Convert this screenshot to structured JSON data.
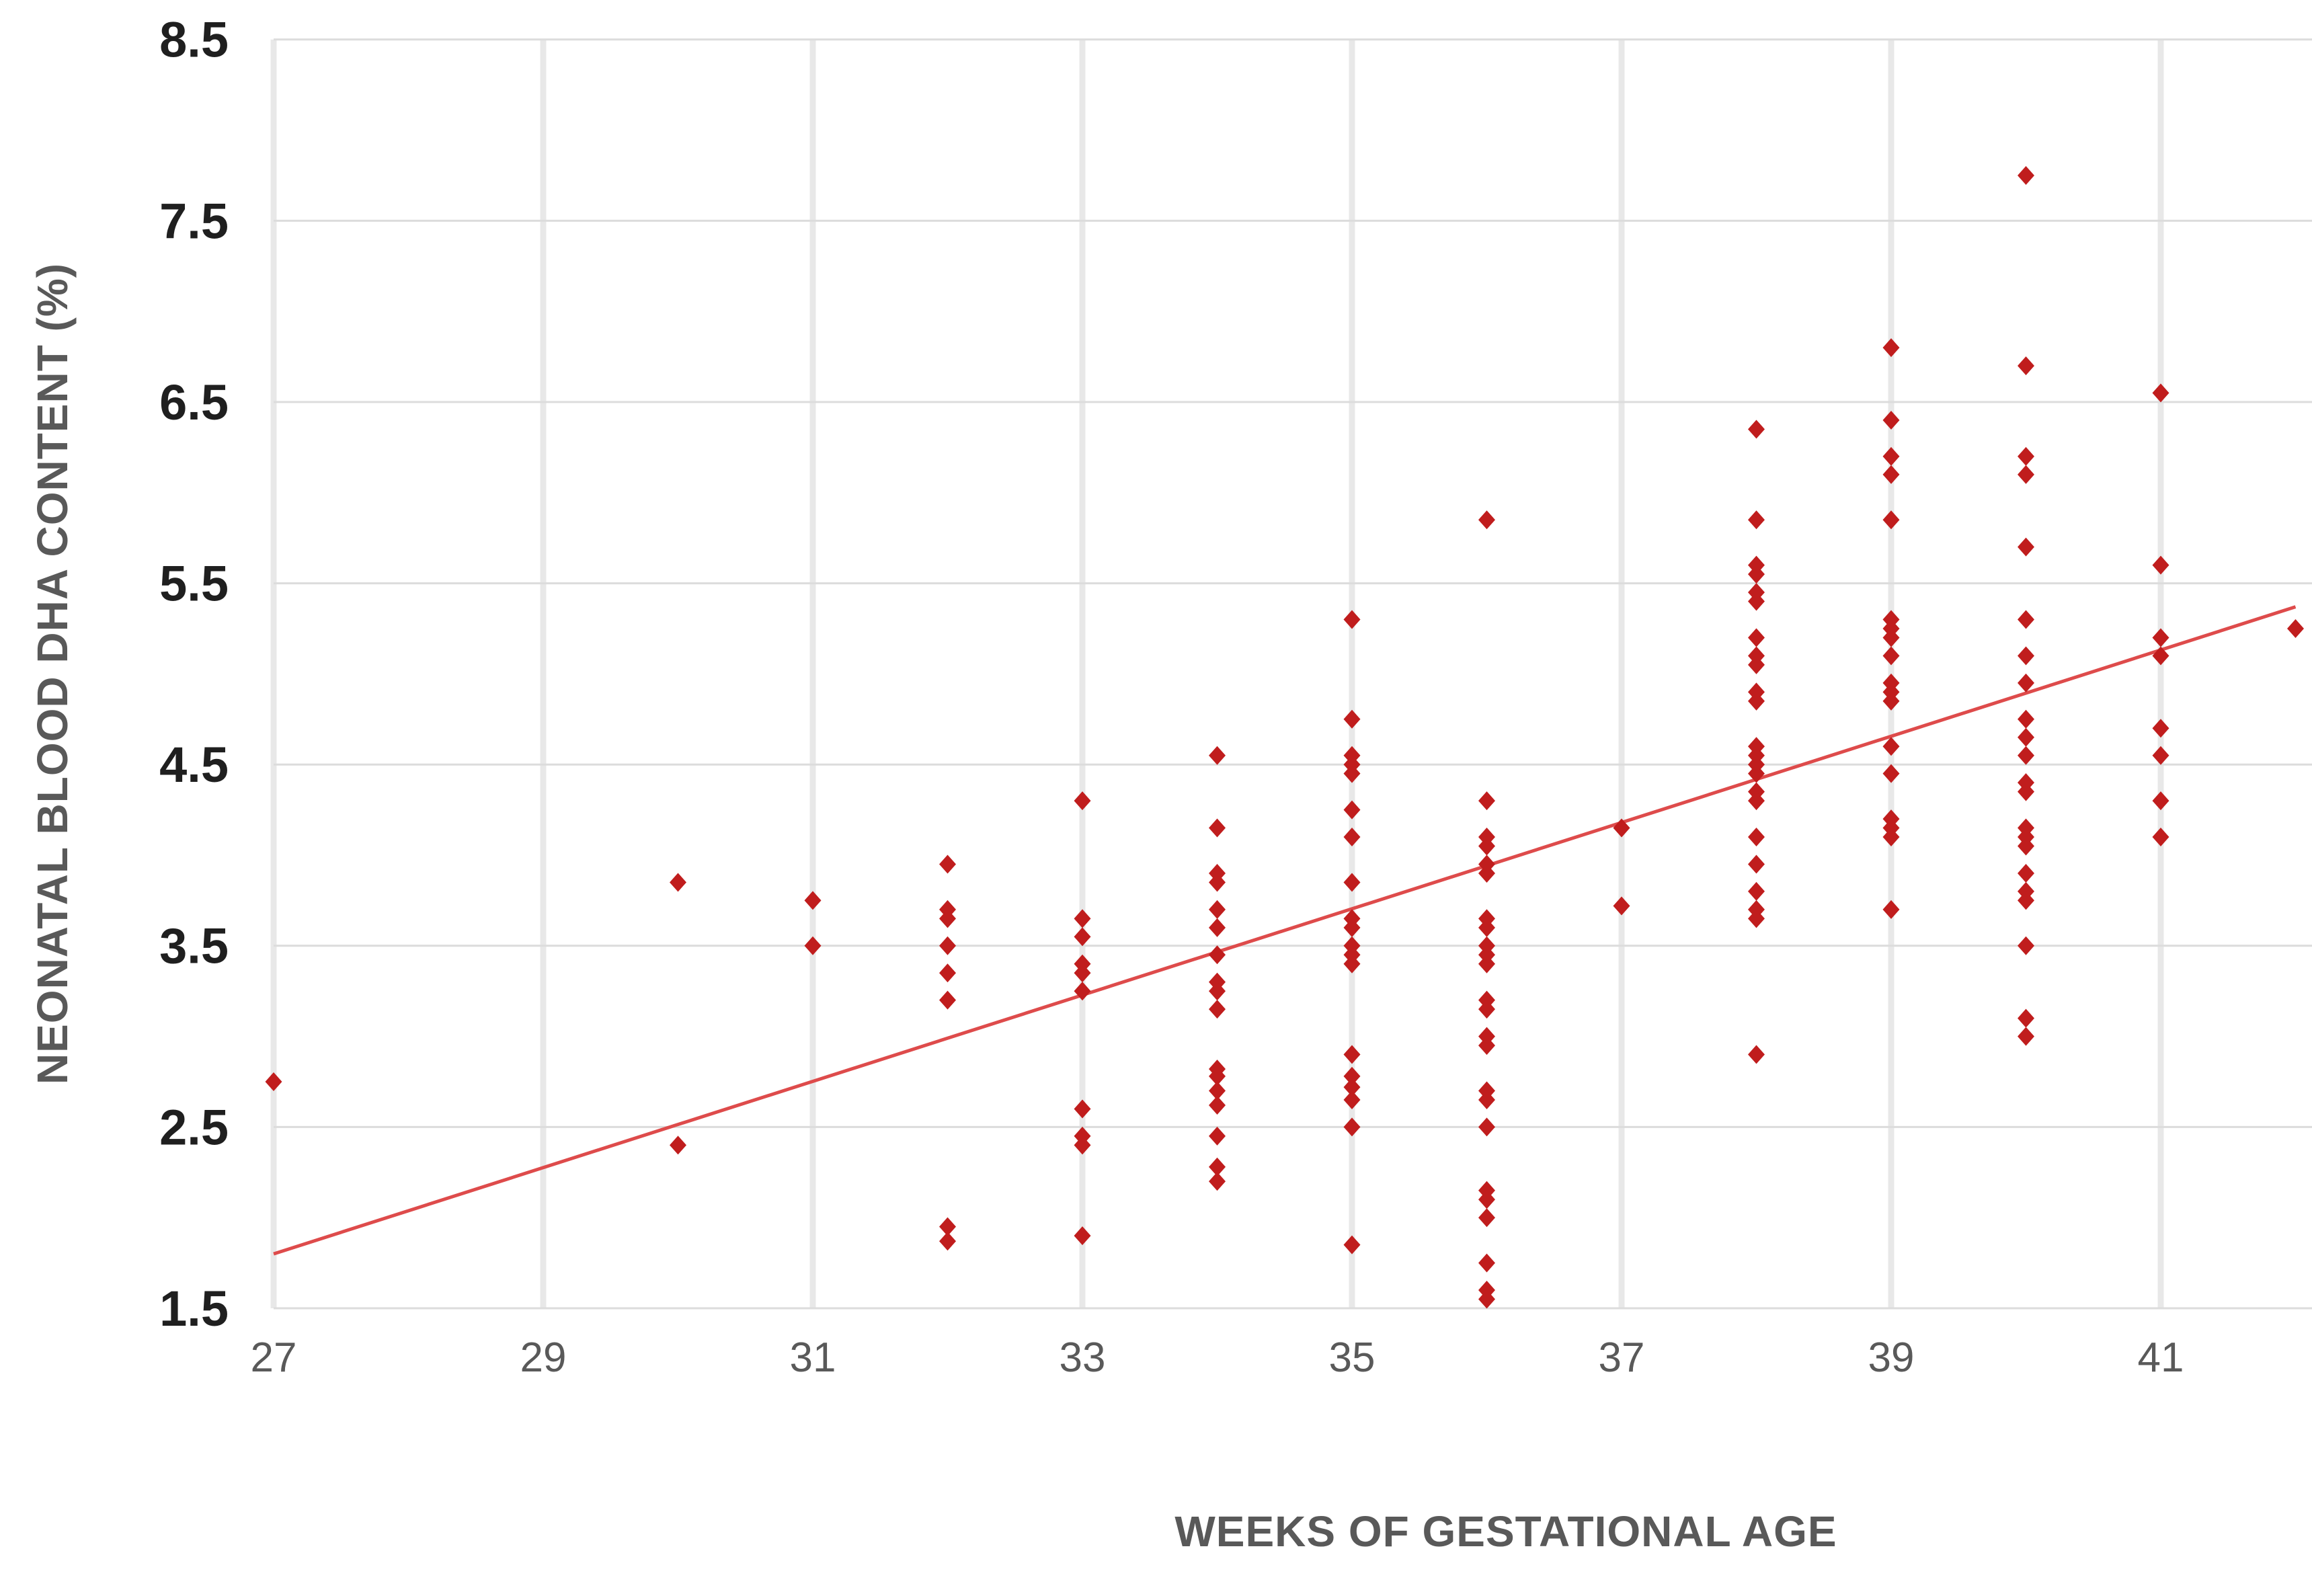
{
  "chart_data": {
    "type": "scatter",
    "title": "",
    "xlabel": "WEEKS OF GESTATIONAL AGE",
    "ylabel": "NEONATAL BLOOD DHA CONTENT (%)",
    "xlim": [
      27,
      42.15
    ],
    "ylim": [
      1.5,
      8.5
    ],
    "x_ticks": [
      27,
      29,
      31,
      33,
      35,
      37,
      39,
      41
    ],
    "y_ticks": [
      8.5,
      7.5,
      6.5,
      5.5,
      4.5,
      3.5,
      2.5,
      1.5
    ],
    "grid": {
      "horizontal_lines_at": [
        1.5,
        2.5,
        3.5,
        4.5,
        5.5,
        6.5,
        7.5,
        8.5
      ],
      "vertical_lines_at": [
        27,
        29,
        31,
        33,
        35,
        37,
        39,
        41
      ],
      "legend": "none"
    },
    "colors": {
      "marker": "#c01d1d",
      "trendline": "#de4b4b",
      "h_gridline": "#dcdcdc",
      "v_gridline": "#e8e8e8",
      "tick_label": "#595959",
      "ytick_label": "#1f1f1f",
      "axis_title": "#595959",
      "background": "#ffffff"
    },
    "marker_shape": "diamond",
    "series": [
      {
        "name": "neonatal-blood-dha",
        "points": [
          [
            27,
            2.75
          ],
          [
            30,
            3.85
          ],
          [
            30,
            2.4
          ],
          [
            31,
            3.75
          ],
          [
            31,
            3.5
          ],
          [
            32,
            3.95
          ],
          [
            32,
            3.7
          ],
          [
            32,
            3.65
          ],
          [
            32,
            3.5
          ],
          [
            32,
            3.35
          ],
          [
            32,
            3.2
          ],
          [
            32,
            1.95
          ],
          [
            32,
            1.87
          ],
          [
            33,
            4.3
          ],
          [
            33,
            3.65
          ],
          [
            33,
            3.55
          ],
          [
            33,
            3.4
          ],
          [
            33,
            3.35
          ],
          [
            33,
            3.25
          ],
          [
            33,
            2.6
          ],
          [
            33,
            2.45
          ],
          [
            33,
            2.4
          ],
          [
            33,
            1.9
          ],
          [
            34,
            4.55
          ],
          [
            34,
            4.15
          ],
          [
            34,
            3.9
          ],
          [
            34,
            3.85
          ],
          [
            34,
            3.7
          ],
          [
            34,
            3.6
          ],
          [
            34,
            3.45
          ],
          [
            34,
            3.3
          ],
          [
            34,
            3.25
          ],
          [
            34,
            3.15
          ],
          [
            34,
            2.82
          ],
          [
            34,
            2.78
          ],
          [
            34,
            2.7
          ],
          [
            34,
            2.62
          ],
          [
            34,
            2.45
          ],
          [
            34,
            2.28
          ],
          [
            34,
            2.2
          ],
          [
            35,
            5.3
          ],
          [
            35,
            4.75
          ],
          [
            35,
            4.55
          ],
          [
            35,
            4.5
          ],
          [
            35,
            4.45
          ],
          [
            35,
            4.25
          ],
          [
            35,
            4.1
          ],
          [
            35,
            3.85
          ],
          [
            35,
            3.65
          ],
          [
            35,
            3.6
          ],
          [
            35,
            3.5
          ],
          [
            35,
            3.45
          ],
          [
            35,
            3.4
          ],
          [
            35,
            2.9
          ],
          [
            35,
            2.78
          ],
          [
            35,
            2.72
          ],
          [
            35,
            2.65
          ],
          [
            35,
            2.5
          ],
          [
            35,
            1.85
          ],
          [
            36,
            5.85
          ],
          [
            36,
            4.3
          ],
          [
            36,
            4.1
          ],
          [
            36,
            4.05
          ],
          [
            36,
            3.95
          ],
          [
            36,
            3.9
          ],
          [
            36,
            3.65
          ],
          [
            36,
            3.6
          ],
          [
            36,
            3.5
          ],
          [
            36,
            3.45
          ],
          [
            36,
            3.4
          ],
          [
            36,
            3.2
          ],
          [
            36,
            3.15
          ],
          [
            36,
            3.0
          ],
          [
            36,
            2.95
          ],
          [
            36,
            2.7
          ],
          [
            36,
            2.65
          ],
          [
            36,
            2.5
          ],
          [
            36,
            2.15
          ],
          [
            36,
            2.1
          ],
          [
            36,
            2.0
          ],
          [
            36,
            1.75
          ],
          [
            36,
            1.6
          ],
          [
            36,
            1.55
          ],
          [
            37,
            4.15
          ],
          [
            37,
            3.72
          ],
          [
            38,
            6.35
          ],
          [
            38,
            5.85
          ],
          [
            38,
            5.6
          ],
          [
            38,
            5.55
          ],
          [
            38,
            5.45
          ],
          [
            38,
            5.4
          ],
          [
            38,
            5.2
          ],
          [
            38,
            5.1
          ],
          [
            38,
            5.05
          ],
          [
            38,
            4.9
          ],
          [
            38,
            4.85
          ],
          [
            38,
            4.6
          ],
          [
            38,
            4.55
          ],
          [
            38,
            4.5
          ],
          [
            38,
            4.45
          ],
          [
            38,
            4.35
          ],
          [
            38,
            4.3
          ],
          [
            38,
            4.1
          ],
          [
            38,
            3.95
          ],
          [
            38,
            3.8
          ],
          [
            38,
            3.7
          ],
          [
            38,
            3.65
          ],
          [
            38,
            2.9
          ],
          [
            39,
            6.8
          ],
          [
            39,
            6.4
          ],
          [
            39,
            6.2
          ],
          [
            39,
            6.1
          ],
          [
            39,
            5.85
          ],
          [
            39,
            5.3
          ],
          [
            39,
            5.25
          ],
          [
            39,
            5.2
          ],
          [
            39,
            5.1
          ],
          [
            39,
            4.95
          ],
          [
            39,
            4.9
          ],
          [
            39,
            4.85
          ],
          [
            39,
            4.6
          ],
          [
            39,
            4.45
          ],
          [
            39,
            4.2
          ],
          [
            39,
            4.15
          ],
          [
            39,
            4.1
          ],
          [
            39,
            3.7
          ],
          [
            40,
            7.75
          ],
          [
            40,
            6.7
          ],
          [
            40,
            6.2
          ],
          [
            40,
            6.1
          ],
          [
            40,
            5.7
          ],
          [
            40,
            5.3
          ],
          [
            40,
            5.1
          ],
          [
            40,
            4.95
          ],
          [
            40,
            4.75
          ],
          [
            40,
            4.65
          ],
          [
            40,
            4.55
          ],
          [
            40,
            4.4
          ],
          [
            40,
            4.35
          ],
          [
            40,
            4.15
          ],
          [
            40,
            4.1
          ],
          [
            40,
            4.05
          ],
          [
            40,
            3.9
          ],
          [
            40,
            3.8
          ],
          [
            40,
            3.75
          ],
          [
            40,
            3.5
          ],
          [
            40,
            3.1
          ],
          [
            40,
            3.0
          ],
          [
            41,
            6.55
          ],
          [
            41,
            5.6
          ],
          [
            41,
            5.2
          ],
          [
            41,
            5.1
          ],
          [
            41,
            4.7
          ],
          [
            41,
            4.55
          ],
          [
            41,
            4.3
          ],
          [
            41,
            4.1
          ],
          [
            42,
            5.25
          ]
        ]
      }
    ],
    "trendline": {
      "x1": 27,
      "y1": 1.8,
      "x2": 42,
      "y2": 5.37
    }
  }
}
